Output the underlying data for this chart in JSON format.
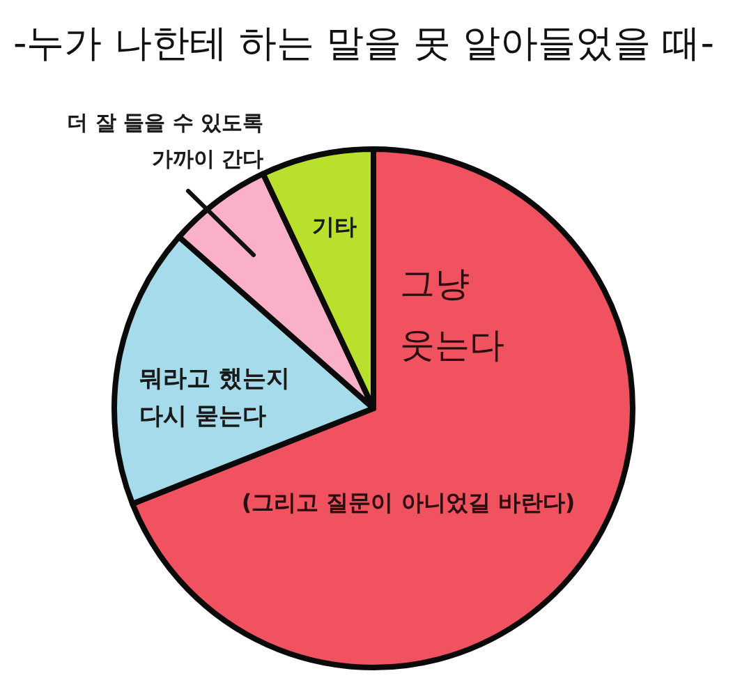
{
  "chart_data": {
    "type": "pie",
    "title": "-누가 나한테 하는 말을 못 알아들었을 때-",
    "categories": [
      "그냥\n웃는다",
      "뭐라고 했는지\n다시 묻는다",
      "더 잘 들을 수 있도록\n가까이 간다",
      "기타"
    ],
    "values": [
      69,
      17.5,
      6.5,
      7
    ],
    "colors": [
      "#f0525f",
      "#a5dbea",
      "#f9b0c8",
      "#b8e02c"
    ],
    "annotations": [
      "(그리고 질문이 아니었길 바란다)"
    ]
  }
}
